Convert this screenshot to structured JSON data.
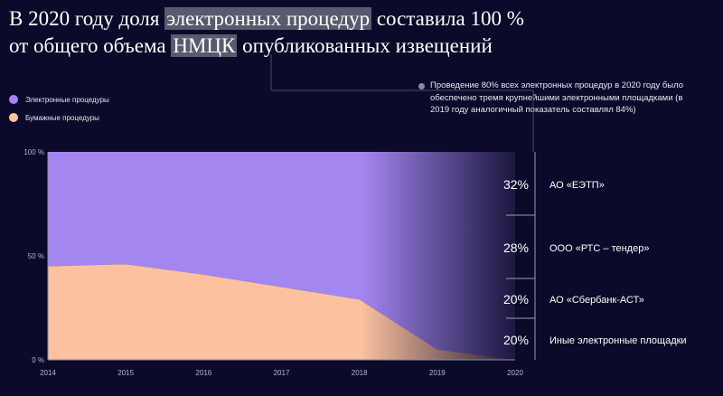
{
  "title": {
    "part1": "В 2020 году доля ",
    "highlight1": "электронных процедур",
    "part2": " составила 100 %",
    "part3": "от общего объема ",
    "highlight2": "НМЦК",
    "part4": " опубликованных извещений"
  },
  "note": "Проведение 80% всех электронных процедур в 2020 году было обеспечено тремя крупнейшими электронными площадками (в 2019 году аналогичный показатель составлял 84%)",
  "colors": {
    "electronic": "#a486f0",
    "paper": "#fcc19f",
    "background": "#0b0a2a"
  },
  "chart_data": {
    "type": "area",
    "x": [
      "2014",
      "2015",
      "2016",
      "2017",
      "2018",
      "2019",
      "2020"
    ],
    "series": [
      {
        "name": "Электронные процедуры",
        "values": [
          55,
          54,
          59,
          65,
          71,
          95,
          100
        ]
      },
      {
        "name": "Бумажные процедуры",
        "values": [
          45,
          46,
          41,
          35,
          29,
          5,
          0
        ]
      }
    ],
    "stacked": true,
    "ylim": [
      0,
      100
    ],
    "yticks": [
      "0 %",
      "50 %",
      "100 %"
    ],
    "legend_position": "top-left",
    "platform_shares": [
      {
        "value": "32%",
        "label": "АО «ЕЭТП»",
        "share": 32
      },
      {
        "value": "28%",
        "label": "ООО «РТС – тендер»",
        "share": 28
      },
      {
        "value": "20%",
        "label": "АО «Сбербанк-АСТ»",
        "share": 20
      },
      {
        "value": "20%",
        "label": "Иные электронные площадки",
        "share": 20
      }
    ]
  }
}
